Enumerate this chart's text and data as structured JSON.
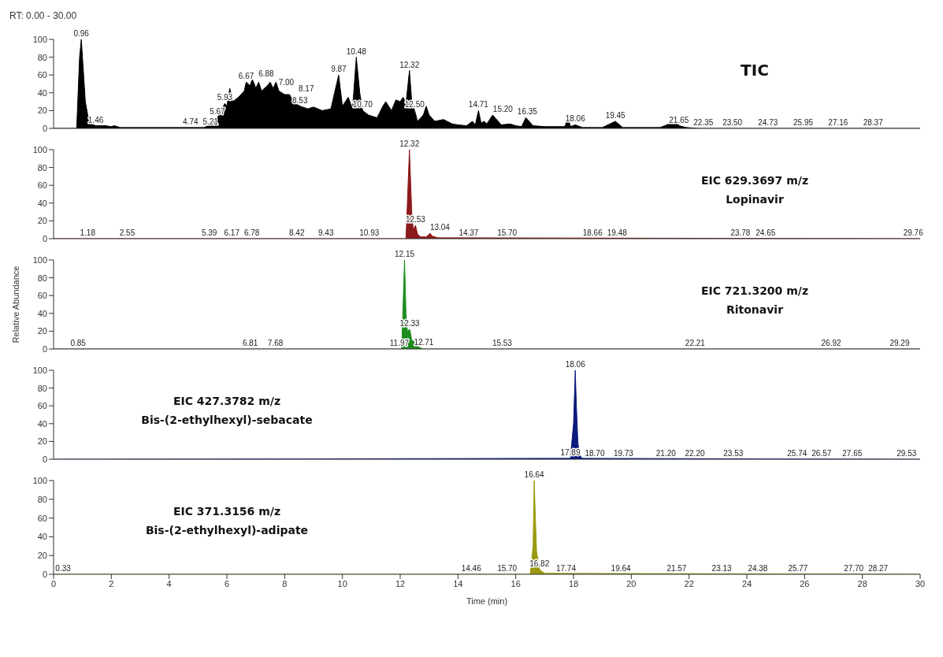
{
  "chart_data": [
    {
      "type": "area",
      "title": "RT: 0.00 - 30.00",
      "xlim": [
        0,
        30
      ],
      "ylim": [
        0,
        100
      ],
      "yticks": [
        0,
        20,
        40,
        60,
        80,
        100
      ],
      "tick_labels": "y",
      "grid": false,
      "legend": false,
      "series": [
        {
          "color": "#000000",
          "x": [
            0,
            0.8,
            0.9,
            0.96,
            1.02,
            1.1,
            1.2,
            1.3,
            1.46,
            1.8,
            2.0,
            2.1,
            2.3,
            3,
            4,
            4.74,
            5.21,
            5.5,
            5.67,
            5.8,
            5.93,
            6.0,
            6.1,
            6.2,
            6.4,
            6.6,
            6.67,
            6.8,
            6.88,
            6.95,
            7.0,
            7.1,
            7.2,
            7.4,
            7.5,
            7.6,
            7.7,
            7.8,
            8.0,
            8.17,
            8.3,
            8.53,
            8.8,
            9.0,
            9.3,
            9.6,
            9.87,
            10.0,
            10.2,
            10.35,
            10.48,
            10.6,
            10.7,
            10.9,
            11.2,
            11.4,
            11.5,
            11.7,
            11.85,
            12.0,
            12.1,
            12.2,
            12.32,
            12.4,
            12.5,
            12.6,
            12.8,
            12.9,
            13.0,
            13.2,
            13.5,
            13.8,
            14.0,
            14.3,
            14.5,
            14.6,
            14.71,
            14.8,
            14.9,
            15.0,
            15.2,
            15.5,
            15.8,
            16.0,
            16.2,
            16.35,
            16.6,
            17.0,
            17.4,
            17.7,
            17.8,
            17.9,
            18.06,
            18.3,
            19.0,
            19.45,
            19.7,
            20.2,
            21.0,
            21.55,
            21.65,
            21.9,
            22.35,
            30
          ],
          "values": [
            0,
            0,
            80,
            100,
            70,
            30,
            12,
            5,
            3,
            3,
            2,
            3,
            1,
            1,
            1,
            1,
            1,
            5,
            12,
            20,
            28,
            25,
            45,
            30,
            35,
            42,
            52,
            48,
            55,
            50,
            45,
            52,
            42,
            48,
            52,
            45,
            52,
            42,
            38,
            38,
            30,
            25,
            22,
            24,
            20,
            22,
            60,
            25,
            35,
            22,
            80,
            40,
            20,
            15,
            12,
            25,
            30,
            20,
            32,
            30,
            35,
            28,
            65,
            30,
            20,
            8,
            15,
            25,
            15,
            8,
            10,
            5,
            4,
            3,
            8,
            4,
            20,
            6,
            8,
            5,
            15,
            4,
            5,
            3,
            2,
            12,
            3,
            2,
            2,
            2,
            12,
            2,
            4,
            1,
            1,
            8,
            1,
            1,
            1,
            8,
            3,
            1,
            0,
            0
          ]
        }
      ],
      "annotations": [
        "TIC",
        {
          "text": "0.96",
          "x": 0.96,
          "y": 100
        },
        {
          "text": "1.46",
          "x": 1.46,
          "y": 3
        },
        {
          "text": "4.74",
          "x": 4.74,
          "y": 1
        },
        {
          "text": "5.21",
          "x": 5.21,
          "y": 1
        },
        {
          "text": "5.67",
          "x": 5.67,
          "y": 12
        },
        {
          "text": "5.93",
          "x": 5.93,
          "y": 28
        },
        {
          "text": "6.67",
          "x": 6.67,
          "y": 52
        },
        {
          "text": "6.88",
          "x": 6.88,
          "y": 55
        },
        {
          "text": "7.00",
          "x": 7.0,
          "y": 45
        },
        {
          "text": "8.17",
          "x": 8.17,
          "y": 38
        },
        {
          "text": "8.53",
          "x": 8.53,
          "y": 25
        },
        {
          "text": "9.87",
          "x": 9.87,
          "y": 60
        },
        {
          "text": "10.48",
          "x": 10.48,
          "y": 80
        },
        {
          "text": "10.70",
          "x": 10.7,
          "y": 20
        },
        {
          "text": "12.32",
          "x": 12.32,
          "y": 65
        },
        {
          "text": "12.50",
          "x": 12.5,
          "y": 20
        },
        {
          "text": "14.71",
          "x": 14.71,
          "y": 20
        },
        {
          "text": "15.20",
          "x": 15.2,
          "y": 15
        },
        {
          "text": "16.35",
          "x": 16.35,
          "y": 12
        },
        {
          "text": "18.06",
          "x": 18.06,
          "y": 4
        },
        {
          "text": "19.45",
          "x": 19.45,
          "y": 8
        },
        {
          "text": "21.65",
          "x": 21.65,
          "y": 3
        },
        {
          "text": "22.35",
          "x": 22.35,
          "y": 0
        },
        {
          "text": "23.50",
          "x": 23.5,
          "y": 0
        },
        {
          "text": "24.73",
          "x": 24.73,
          "y": 0
        },
        {
          "text": "25.95",
          "x": 25.95,
          "y": 0
        },
        {
          "text": "27.16",
          "x": 27.16,
          "y": 0
        },
        {
          "text": "28.37",
          "x": 28.37,
          "y": 0
        }
      ]
    },
    {
      "type": "area",
      "xlim": [
        0,
        30
      ],
      "ylim": [
        0,
        100
      ],
      "yticks": [
        0,
        20,
        40,
        60,
        80,
        100
      ],
      "tick_labels": "y",
      "grid": false,
      "legend": false,
      "series": [
        {
          "color": "#8b1a1a",
          "x": [
            0,
            12.2,
            12.32,
            12.36,
            12.4,
            12.45,
            12.53,
            12.6,
            12.7,
            12.9,
            13.04,
            13.1,
            13.3,
            30
          ],
          "values": [
            0,
            0,
            100,
            65,
            30,
            10,
            15,
            5,
            2,
            2,
            6,
            3,
            1,
            0
          ]
        }
      ],
      "annotations": [
        "EIC 629.3697 m/z",
        "Lopinavir",
        {
          "text": "12.32",
          "x": 12.32,
          "y": 100
        },
        {
          "text": "1.18",
          "x": 1.18,
          "y": 0
        },
        {
          "text": "2.55",
          "x": 2.55,
          "y": 0
        },
        {
          "text": "5.39",
          "x": 5.39,
          "y": 0
        },
        {
          "text": "6.17",
          "x": 6.17,
          "y": 0
        },
        {
          "text": "6.78",
          "x": 6.78,
          "y": 0
        },
        {
          "text": "8.42",
          "x": 8.42,
          "y": 0
        },
        {
          "text": "9.43",
          "x": 9.43,
          "y": 0
        },
        {
          "text": "10.93",
          "x": 10.93,
          "y": 0
        },
        {
          "text": "12.53",
          "x": 12.53,
          "y": 15
        },
        {
          "text": "13.04",
          "x": 13.04,
          "y": 6
        },
        {
          "text": "14.37",
          "x": 14.37,
          "y": 0
        },
        {
          "text": "15.70",
          "x": 15.7,
          "y": 0
        },
        {
          "text": "18.66",
          "x": 18.66,
          "y": 0
        },
        {
          "text": "19.48",
          "x": 19.48,
          "y": 0
        },
        {
          "text": "23.78",
          "x": 23.78,
          "y": 0
        },
        {
          "text": "24.65",
          "x": 24.65,
          "y": 0
        },
        {
          "text": "29.76",
          "x": 29.76,
          "y": 0
        }
      ]
    },
    {
      "type": "area",
      "ylabel": "Relative Abundance",
      "xlim": [
        0,
        30
      ],
      "ylim": [
        0,
        100
      ],
      "yticks": [
        0,
        20,
        40,
        60,
        80,
        100
      ],
      "tick_labels": "y",
      "grid": false,
      "legend": false,
      "series": [
        {
          "color": "#1e8c1e",
          "x": [
            0,
            12.05,
            12.15,
            12.2,
            12.25,
            12.33,
            12.4,
            12.5,
            12.6,
            12.71,
            12.8,
            30
          ],
          "values": [
            0,
            0,
            100,
            40,
            20,
            22,
            10,
            8,
            3,
            1,
            0,
            0
          ]
        }
      ],
      "annotations": [
        "EIC 721.3200 m/z",
        "Ritonavir",
        {
          "text": "12.15",
          "x": 12.15,
          "y": 100
        },
        {
          "text": "0.85",
          "x": 0.85,
          "y": 0
        },
        {
          "text": "6.81",
          "x": 6.81,
          "y": 0
        },
        {
          "text": "7.68",
          "x": 7.68,
          "y": 0
        },
        {
          "text": "11.97",
          "x": 11.97,
          "y": 0
        },
        {
          "text": "12.33",
          "x": 12.33,
          "y": 22
        },
        {
          "text": "12.71",
          "x": 12.71,
          "y": 1
        },
        {
          "text": "15.53",
          "x": 15.53,
          "y": 0
        },
        {
          "text": "22.21",
          "x": 22.21,
          "y": 0
        },
        {
          "text": "26.92",
          "x": 26.92,
          "y": 0
        },
        {
          "text": "29.29",
          "x": 29.29,
          "y": 0
        }
      ]
    },
    {
      "type": "area",
      "xlim": [
        0,
        30
      ],
      "ylim": [
        0,
        100
      ],
      "yticks": [
        0,
        20,
        40,
        60,
        80,
        100
      ],
      "tick_labels": "y",
      "grid": false,
      "legend": false,
      "series": [
        {
          "color": "#0a1a7a",
          "x": [
            0,
            17.89,
            18.0,
            18.06,
            18.1,
            18.15,
            18.2,
            18.3,
            30
          ],
          "values": [
            0,
            1,
            40,
            100,
            60,
            20,
            5,
            1,
            0
          ]
        }
      ],
      "annotations": [
        "EIC 427.3782 m/z",
        "Bis-(2-ethylhexyl)-sebacate",
        {
          "text": "18.06",
          "x": 18.06,
          "y": 100
        },
        {
          "text": "17.89",
          "x": 17.89,
          "y": 1
        },
        {
          "text": "18.70",
          "x": 18.7,
          "y": 0
        },
        {
          "text": "19.73",
          "x": 19.73,
          "y": 0
        },
        {
          "text": "21.20",
          "x": 21.2,
          "y": 0
        },
        {
          "text": "22.20",
          "x": 22.2,
          "y": 0
        },
        {
          "text": "23.53",
          "x": 23.53,
          "y": 0
        },
        {
          "text": "25.74",
          "x": 25.74,
          "y": 0
        },
        {
          "text": "26.57",
          "x": 26.57,
          "y": 0
        },
        {
          "text": "27.65",
          "x": 27.65,
          "y": 0
        },
        {
          "text": "29.53",
          "x": 29.53,
          "y": 0
        }
      ]
    },
    {
      "type": "area",
      "xlabel": "Time (min)",
      "xlim": [
        0,
        30
      ],
      "xticks": [
        0,
        2,
        4,
        6,
        8,
        10,
        12,
        14,
        16,
        18,
        20,
        22,
        24,
        26,
        28,
        30
      ],
      "ylim": [
        0,
        100
      ],
      "yticks": [
        0,
        20,
        40,
        60,
        80,
        100
      ],
      "grid": false,
      "legend": false,
      "series": [
        {
          "color": "#9a9a10",
          "x": [
            0,
            16.5,
            16.6,
            16.64,
            16.68,
            16.72,
            16.82,
            17.0,
            30
          ],
          "values": [
            0,
            0,
            30,
            100,
            60,
            25,
            5,
            1,
            0
          ]
        }
      ],
      "annotations": [
        "EIC 371.3156 m/z",
        "Bis-(2-ethylhexyl)-adipate",
        {
          "text": "16.64",
          "x": 16.64,
          "y": 100
        },
        {
          "text": "0.33",
          "x": 0.33,
          "y": 0
        },
        {
          "text": "14.46",
          "x": 14.46,
          "y": 0
        },
        {
          "text": "15.70",
          "x": 15.7,
          "y": 0
        },
        {
          "text": "16.82",
          "x": 16.82,
          "y": 5
        },
        {
          "text": "17.74",
          "x": 17.74,
          "y": 0
        },
        {
          "text": "19.64",
          "x": 19.64,
          "y": 0
        },
        {
          "text": "21.57",
          "x": 21.57,
          "y": 0
        },
        {
          "text": "23.13",
          "x": 23.13,
          "y": 0
        },
        {
          "text": "24.38",
          "x": 24.38,
          "y": 0
        },
        {
          "text": "25.77",
          "x": 25.77,
          "y": 0
        },
        {
          "text": "27.70",
          "x": 27.7,
          "y": 0
        },
        {
          "text": "28.27",
          "x": 28.27,
          "y": 0
        }
      ]
    }
  ]
}
